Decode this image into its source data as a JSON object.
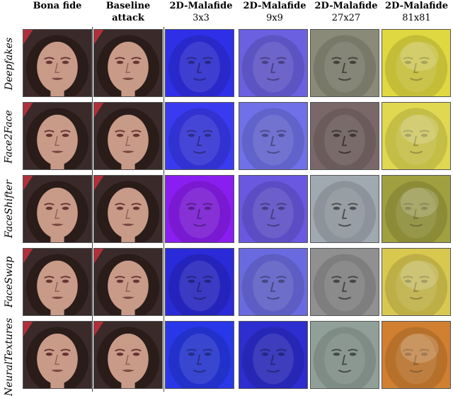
{
  "columns": [
    {
      "line1": "Bona fide",
      "line2": ""
    },
    {
      "line1": "Baseline",
      "line2": "attack"
    },
    {
      "line1": "2D-Malafide",
      "line2": "3x3"
    },
    {
      "line1": "2D-Malafide",
      "line2": "9x9"
    },
    {
      "line1": "2D-Malafide",
      "line2": "27x27"
    },
    {
      "line1": "2D-Malafide",
      "line2": "81x81"
    }
  ],
  "rows": [
    {
      "label": "Deepfakes"
    },
    {
      "label": "Face2Face"
    },
    {
      "label": "FaceShifter"
    },
    {
      "label": "FaceSwap"
    },
    {
      "label": "NeuralTextures"
    }
  ],
  "colors": {
    "skin": "#c89a88",
    "hair": "#2a1c18",
    "bg_red": "#b0303a",
    "m3": [
      "#2f2fe8",
      "#3a3af0",
      "#8a1ef0",
      "#2a2ad8",
      "#2838e8"
    ],
    "m9": [
      "#6a60e0",
      "#7070e8",
      "#6a58e0",
      "#6a6ae0",
      "#2d2dd0"
    ],
    "m27": [
      "#8a8a78",
      "#7a6868",
      "#a0a8b0",
      "#909090",
      "#90a098"
    ],
    "m81": [
      "#e0d840",
      "#e0d850",
      "#a0a040",
      "#d8c850",
      "#d08030"
    ]
  }
}
